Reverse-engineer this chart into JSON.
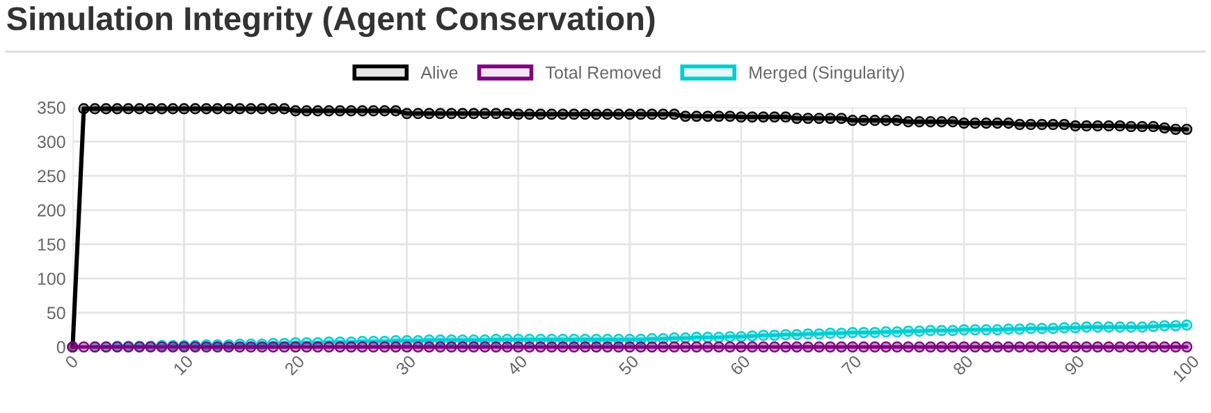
{
  "chart_data": {
    "type": "line",
    "title": "Simulation Integrity (Agent Conservation)",
    "x": [
      0,
      1,
      2,
      3,
      4,
      5,
      6,
      7,
      8,
      9,
      10,
      11,
      12,
      13,
      14,
      15,
      16,
      17,
      18,
      19,
      20,
      21,
      22,
      23,
      24,
      25,
      26,
      27,
      28,
      29,
      30,
      31,
      32,
      33,
      34,
      35,
      36,
      37,
      38,
      39,
      40,
      41,
      42,
      43,
      44,
      45,
      46,
      47,
      48,
      49,
      50,
      51,
      52,
      53,
      54,
      55,
      56,
      57,
      58,
      59,
      60,
      61,
      62,
      63,
      64,
      65,
      66,
      67,
      68,
      69,
      70,
      71,
      72,
      73,
      74,
      75,
      76,
      77,
      78,
      79,
      80,
      81,
      82,
      83,
      84,
      85,
      86,
      87,
      88,
      89,
      90,
      91,
      92,
      93,
      94,
      95,
      96,
      97,
      98,
      99,
      100
    ],
    "series": [
      {
        "name": "Alive",
        "color": "#000000",
        "values": [
          0,
          348,
          348,
          348,
          348,
          348,
          348,
          348,
          348,
          348,
          348,
          348,
          348,
          348,
          348,
          348,
          348,
          348,
          348,
          348,
          345,
          345,
          345,
          345,
          345,
          345,
          345,
          345,
          345,
          345,
          341,
          341,
          341,
          341,
          341,
          341,
          341,
          341,
          341,
          341,
          340,
          340,
          340,
          340,
          340,
          340,
          340,
          340,
          340,
          340,
          340,
          340,
          340,
          340,
          340,
          337,
          337,
          337,
          337,
          337,
          336,
          336,
          336,
          336,
          336,
          334,
          334,
          334,
          334,
          334,
          331,
          331,
          331,
          331,
          331,
          329,
          329,
          329,
          329,
          329,
          327,
          327,
          327,
          327,
          327,
          325,
          325,
          325,
          325,
          325,
          323,
          323,
          323,
          323,
          323,
          322,
          322,
          322,
          320,
          318,
          318
        ]
      },
      {
        "name": "Total Removed",
        "color": "#800080",
        "values": [
          0,
          0,
          0,
          0,
          0,
          0,
          0,
          0,
          0,
          0,
          0,
          0,
          0,
          0,
          0,
          0,
          0,
          0,
          0,
          0,
          0,
          0,
          0,
          0,
          0,
          0,
          0,
          0,
          0,
          0,
          0,
          0,
          0,
          0,
          0,
          0,
          0,
          0,
          0,
          0,
          0,
          0,
          0,
          0,
          0,
          0,
          0,
          0,
          0,
          0,
          0,
          0,
          0,
          0,
          0,
          0,
          0,
          0,
          0,
          0,
          0,
          0,
          0,
          0,
          0,
          0,
          0,
          0,
          0,
          0,
          0,
          0,
          0,
          0,
          0,
          0,
          0,
          0,
          0,
          0,
          0,
          0,
          0,
          0,
          0,
          0,
          0,
          0,
          0,
          0,
          0,
          0,
          0,
          0,
          0,
          0,
          0,
          0,
          0,
          0,
          0
        ]
      },
      {
        "name": "Merged (Singularity)",
        "color": "#00ced1",
        "values": [
          null,
          null,
          0,
          0,
          1,
          1,
          1,
          1,
          2,
          2,
          2,
          2,
          3,
          3,
          3,
          4,
          4,
          4,
          5,
          5,
          6,
          6,
          6,
          7,
          7,
          7,
          8,
          8,
          8,
          9,
          9,
          9,
          10,
          10,
          10,
          10,
          10,
          10,
          11,
          11,
          11,
          11,
          11,
          11,
          11,
          11,
          11,
          11,
          11,
          11,
          11,
          11,
          12,
          12,
          13,
          13,
          14,
          14,
          14,
          15,
          15,
          16,
          17,
          17,
          18,
          18,
          19,
          19,
          20,
          20,
          21,
          21,
          21,
          22,
          22,
          23,
          23,
          24,
          24,
          24,
          25,
          25,
          25,
          25,
          26,
          26,
          27,
          27,
          27,
          28,
          28,
          29,
          29,
          29,
          29,
          29,
          29,
          30,
          31,
          31,
          32
        ]
      }
    ],
    "xlim": [
      0,
      100
    ],
    "xticks": [
      0,
      10,
      20,
      30,
      40,
      50,
      60,
      70,
      80,
      90,
      100
    ],
    "ylim": [
      0,
      350
    ],
    "yticks": [
      0,
      50,
      100,
      150,
      200,
      250,
      300,
      350
    ],
    "grid": true,
    "legend": "top",
    "marker": "circle",
    "line_style": "solid"
  }
}
